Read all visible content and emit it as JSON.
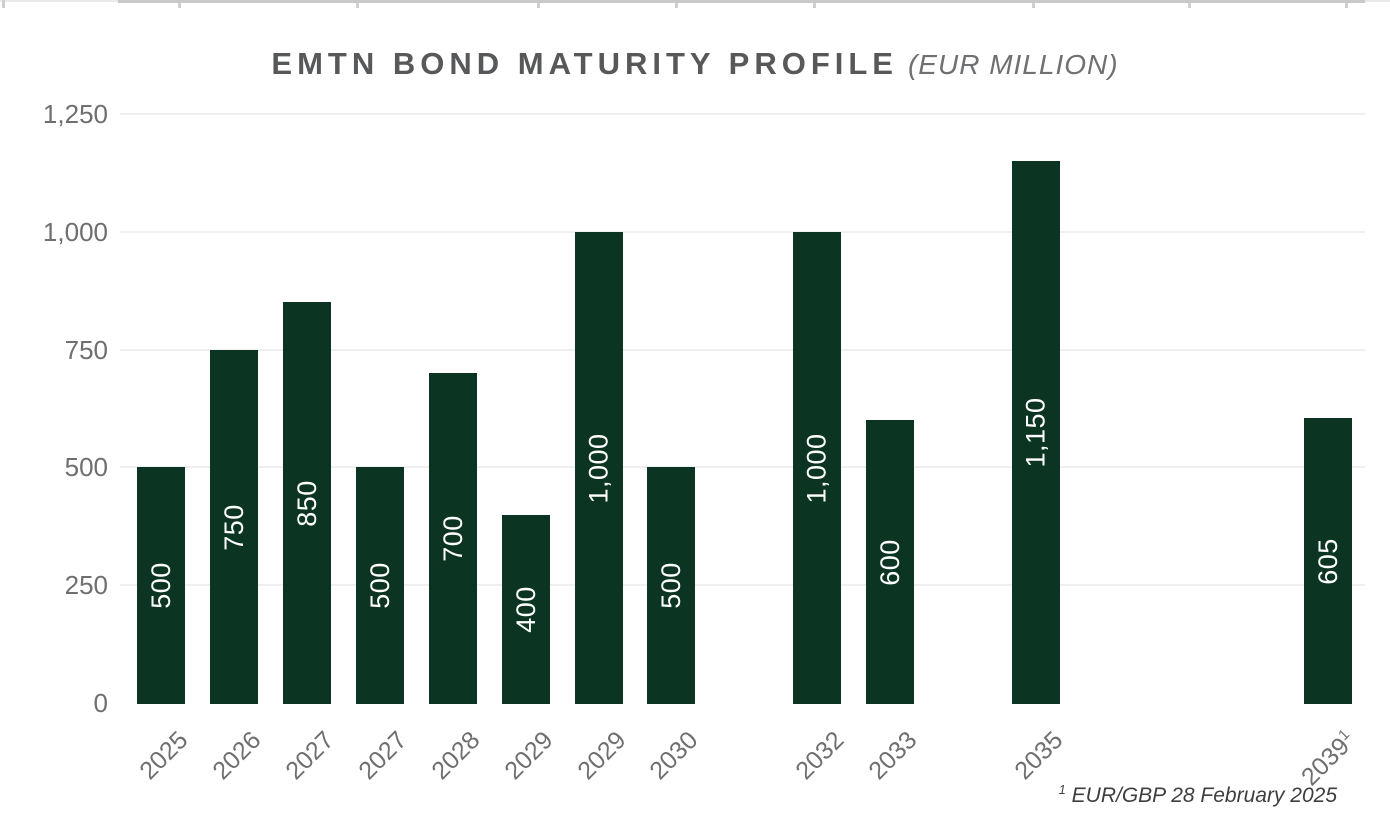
{
  "title": {
    "main": "EMTN BOND MATURITY PROFILE",
    "subtitle": "(EUR MILLION)"
  },
  "footnote": {
    "marker": "1",
    "text": " EUR/GBP 28 February 2025"
  },
  "colors": {
    "bar": "#0b3422",
    "bar_label": "#ffffff",
    "gridline": "#efefef",
    "axis_line": "#c9c9c9",
    "axis_text": "#6f6f6f",
    "title_text": "#57585a",
    "subtitle_text": "#6f7072",
    "footnote_text": "#3e3e3d"
  },
  "chart_data": {
    "type": "bar",
    "title": "EMTN BOND MATURITY PROFILE (EUR MILLION)",
    "xlabel": "",
    "ylabel": "",
    "ylim": [
      0,
      1250
    ],
    "grid": "horizontal",
    "legend": "none",
    "yticks": [
      {
        "value": 0,
        "label": "0"
      },
      {
        "value": 250,
        "label": "250"
      },
      {
        "value": 500,
        "label": "500"
      },
      {
        "value": 750,
        "label": "750"
      },
      {
        "value": 1000,
        "label": "1,000"
      },
      {
        "value": 1250,
        "label": "1,250"
      }
    ],
    "bars": [
      {
        "year": "2025",
        "value": 500,
        "label": "500",
        "slot": 0,
        "marker": ""
      },
      {
        "year": "2026",
        "value": 750,
        "label": "750",
        "slot": 1,
        "marker": ""
      },
      {
        "year": "2027",
        "value": 850,
        "label": "850",
        "slot": 2,
        "marker": ""
      },
      {
        "year": "2027",
        "value": 500,
        "label": "500",
        "slot": 3,
        "marker": ""
      },
      {
        "year": "2028",
        "value": 700,
        "label": "700",
        "slot": 4,
        "marker": ""
      },
      {
        "year": "2029",
        "value": 400,
        "label": "400",
        "slot": 5,
        "marker": ""
      },
      {
        "year": "2029",
        "value": 1000,
        "label": "1,000",
        "slot": 6,
        "marker": ""
      },
      {
        "year": "2030",
        "value": 500,
        "label": "500",
        "slot": 7,
        "marker": ""
      },
      {
        "year": "2032",
        "value": 1000,
        "label": "1,000",
        "slot": 9,
        "marker": ""
      },
      {
        "year": "2033",
        "value": 600,
        "label": "600",
        "slot": 10,
        "marker": ""
      },
      {
        "year": "2035",
        "value": 1150,
        "label": "1,150",
        "slot": 12,
        "marker": ""
      },
      {
        "year": "2039",
        "value": 605,
        "label": "605",
        "slot": 16,
        "marker": "1"
      }
    ]
  }
}
